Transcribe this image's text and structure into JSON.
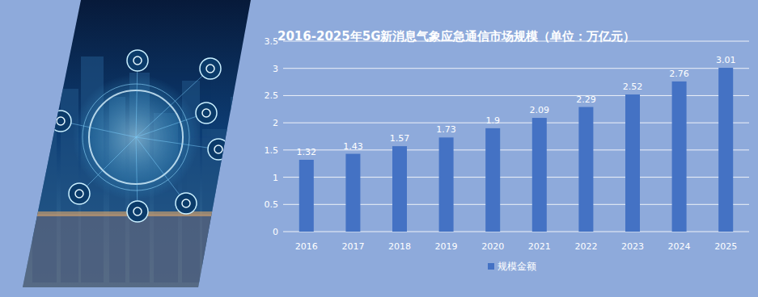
{
  "chart_data": {
    "type": "bar",
    "title": "2016-2025年5G新消息气象应急通信市场规模（单位：万亿元）",
    "categories": [
      "2016",
      "2017",
      "2018",
      "2019",
      "2020",
      "2021",
      "2022",
      "2023",
      "2024",
      "2025"
    ],
    "series": [
      {
        "name": "规模金额",
        "color": "#4472c4",
        "values": [
          1.32,
          1.43,
          1.57,
          1.73,
          1.9,
          2.09,
          2.29,
          2.52,
          2.76,
          3.01
        ]
      }
    ],
    "ylim": [
      0,
      3.5
    ],
    "yticks": [
      0,
      0.5,
      1,
      1.5,
      2,
      2.5,
      3,
      3.5
    ],
    "grid": true,
    "data_labels": true,
    "legend": "bottom"
  }
}
